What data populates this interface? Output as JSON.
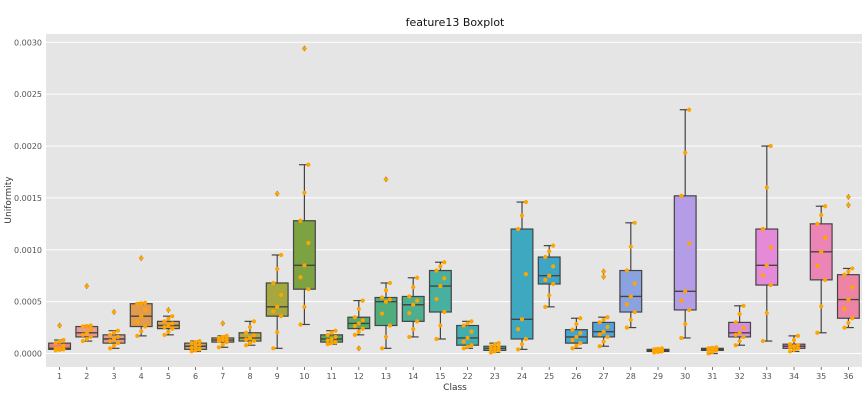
{
  "chart_data": {
    "type": "box",
    "title": "feature13 Boxplot",
    "xlabel": "Class",
    "ylabel": "Uniformity",
    "ylim": [
      -0.00013,
      0.00308
    ],
    "yticks": [
      0.0,
      0.0005,
      0.001,
      0.0015,
      0.002,
      0.0025,
      0.003
    ],
    "ytick_labels": [
      "0.0000",
      "0.0005",
      "0.0010",
      "0.0015",
      "0.0020",
      "0.0025",
      "0.0030"
    ],
    "grid": true,
    "background": "#e5e5e5",
    "point_color": "#ffa500",
    "categories": [
      "1",
      "2",
      "3",
      "4",
      "5",
      "6",
      "7",
      "8",
      "9",
      "10",
      "11",
      "12",
      "13",
      "14",
      "15",
      "22",
      "23",
      "24",
      "25",
      "26",
      "27",
      "28",
      "29",
      "30",
      "31",
      "32",
      "33",
      "34",
      "35",
      "36"
    ],
    "boxes": [
      {
        "cat": "1",
        "color": "#e4837c",
        "whislo": 3e-05,
        "q1": 4e-05,
        "med": 5e-05,
        "q3": 0.0001,
        "whishi": 0.00013,
        "fliers": [
          0.00027
        ]
      },
      {
        "cat": "2",
        "color": "#e79a8f",
        "whislo": 0.00012,
        "q1": 0.00016,
        "med": 0.0002,
        "q3": 0.00026,
        "whishi": 0.00027,
        "fliers": [
          0.00065
        ]
      },
      {
        "cat": "3",
        "color": "#dd9a88",
        "whislo": 5e-05,
        "q1": 0.0001,
        "med": 0.00014,
        "q3": 0.00018,
        "whishi": 0.00022,
        "fliers": [
          0.0004
        ]
      },
      {
        "cat": "4",
        "color": "#e19b4e",
        "whislo": 0.00017,
        "q1": 0.00026,
        "med": 0.00036,
        "q3": 0.00048,
        "whishi": 0.00049,
        "fliers": [
          0.00092
        ]
      },
      {
        "cat": "5",
        "color": "#d8a057",
        "whislo": 0.00018,
        "q1": 0.00024,
        "med": 0.00027,
        "q3": 0.00031,
        "whishi": 0.00036,
        "fliers": [
          0.00042
        ]
      },
      {
        "cat": "6",
        "color": "#c4a46a",
        "whislo": 2e-05,
        "q1": 4e-05,
        "med": 7e-05,
        "q3": 0.0001,
        "whishi": 0.00012,
        "fliers": []
      },
      {
        "cat": "7",
        "color": "#bfa55c",
        "whislo": 6e-05,
        "q1": 0.00011,
        "med": 0.00013,
        "q3": 0.00015,
        "whishi": 0.00017,
        "fliers": [
          0.00029
        ]
      },
      {
        "cat": "8",
        "color": "#b2a94e",
        "whislo": 8e-05,
        "q1": 0.00012,
        "med": 0.00015,
        "q3": 0.0002,
        "whishi": 0.00031,
        "fliers": []
      },
      {
        "cat": "9",
        "color": "#a4a83e",
        "whislo": 5e-05,
        "q1": 0.00036,
        "med": 0.00045,
        "q3": 0.00068,
        "whishi": 0.00095,
        "fliers": [
          0.00154
        ]
      },
      {
        "cat": "10",
        "color": "#7ca242",
        "whislo": 0.00028,
        "q1": 0.00062,
        "med": 0.00085,
        "q3": 0.00128,
        "whishi": 0.00182,
        "fliers": [
          0.00294
        ]
      },
      {
        "cat": "11",
        "color": "#5ea55a",
        "whislo": 9e-05,
        "q1": 0.00011,
        "med": 0.00014,
        "q3": 0.00018,
        "whishi": 0.00022,
        "fliers": []
      },
      {
        "cat": "12",
        "color": "#55a96a",
        "whislo": 0.00018,
        "q1": 0.00024,
        "med": 0.00029,
        "q3": 0.00035,
        "whishi": 0.00051,
        "fliers": [
          5e-05
        ]
      },
      {
        "cat": "13",
        "color": "#4fad7d",
        "whislo": 5e-05,
        "q1": 0.00027,
        "med": 0.0005,
        "q3": 0.00054,
        "whishi": 0.00068,
        "fliers": [
          0.00168
        ]
      },
      {
        "cat": "14",
        "color": "#4cb090",
        "whislo": 0.00016,
        "q1": 0.00031,
        "med": 0.00047,
        "q3": 0.00055,
        "whishi": 0.00073,
        "fliers": []
      },
      {
        "cat": "15",
        "color": "#48b0a0",
        "whislo": 0.00014,
        "q1": 0.0004,
        "med": 0.00065,
        "q3": 0.0008,
        "whishi": 0.00088,
        "fliers": []
      },
      {
        "cat": "22",
        "color": "#43aeb0",
        "whislo": 5e-05,
        "q1": 8e-05,
        "med": 0.00015,
        "q3": 0.00027,
        "whishi": 0.00031,
        "fliers": []
      },
      {
        "cat": "23",
        "color": "#41acbb",
        "whislo": 1e-05,
        "q1": 3e-05,
        "med": 5e-05,
        "q3": 7e-05,
        "whishi": 0.0001,
        "fliers": []
      },
      {
        "cat": "24",
        "color": "#3ea8c0",
        "whislo": 4e-05,
        "q1": 0.00014,
        "med": 0.00033,
        "q3": 0.0012,
        "whishi": 0.00146,
        "fliers": []
      },
      {
        "cat": "25",
        "color": "#3da6c7",
        "whislo": 0.00045,
        "q1": 0.00067,
        "med": 0.00075,
        "q3": 0.00093,
        "whishi": 0.00104,
        "fliers": []
      },
      {
        "cat": "26",
        "color": "#43a4cf",
        "whislo": 5e-05,
        "q1": 0.0001,
        "med": 0.00016,
        "q3": 0.00023,
        "whishi": 0.00034,
        "fliers": []
      },
      {
        "cat": "27",
        "color": "#52a1d8",
        "whislo": 7e-05,
        "q1": 0.00016,
        "med": 0.00021,
        "q3": 0.0003,
        "whishi": 0.00035,
        "fliers": [
          0.00074,
          0.00079
        ]
      },
      {
        "cat": "28",
        "color": "#8aa3e0",
        "whislo": 0.00025,
        "q1": 0.0004,
        "med": 0.00055,
        "q3": 0.0008,
        "whishi": 0.00126,
        "fliers": []
      },
      {
        "cat": "29",
        "color": "#9e9ee3",
        "whislo": 1e-05,
        "q1": 2e-05,
        "med": 3e-05,
        "q3": 4e-05,
        "whishi": 5e-05,
        "fliers": []
      },
      {
        "cat": "30",
        "color": "#b49ce6",
        "whislo": 0.00015,
        "q1": 0.00042,
        "med": 0.0006,
        "q3": 0.00152,
        "whishi": 0.00235,
        "fliers": []
      },
      {
        "cat": "31",
        "color": "#c195e4",
        "whislo": 0.0,
        "q1": 3e-05,
        "med": 4e-05,
        "q3": 5e-05,
        "whishi": 6e-05,
        "fliers": []
      },
      {
        "cat": "32",
        "color": "#d68ee1",
        "whislo": 8e-05,
        "q1": 0.00016,
        "med": 0.0002,
        "q3": 0.0003,
        "whishi": 0.00046,
        "fliers": []
      },
      {
        "cat": "33",
        "color": "#e48ad8",
        "whislo": 0.00012,
        "q1": 0.00066,
        "med": 0.00085,
        "q3": 0.0012,
        "whishi": 0.002,
        "fliers": []
      },
      {
        "cat": "34",
        "color": "#ea88c8",
        "whislo": 2e-05,
        "q1": 5e-05,
        "med": 7e-05,
        "q3": 9e-05,
        "whishi": 0.00017,
        "fliers": []
      },
      {
        "cat": "35",
        "color": "#ec85b6",
        "whislo": 0.0002,
        "q1": 0.00071,
        "med": 0.00098,
        "q3": 0.00125,
        "whishi": 0.00142,
        "fliers": []
      },
      {
        "cat": "36",
        "color": "#ee84a4",
        "whislo": 0.00025,
        "q1": 0.00034,
        "med": 0.00052,
        "q3": 0.00076,
        "whishi": 0.00082,
        "fliers": [
          0.00143,
          0.00151
        ]
      }
    ]
  }
}
